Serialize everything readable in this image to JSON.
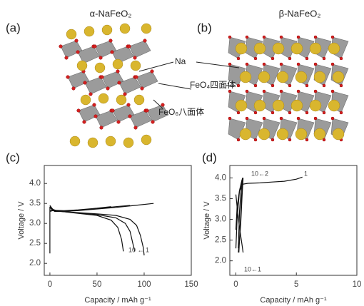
{
  "panels": {
    "a": "(a)",
    "b": "(b)",
    "c": "(c)",
    "d": "(d)"
  },
  "structures": {
    "alpha_title": "α-NaFeO₂",
    "beta_title": "β-NaFeO₂",
    "na_label": "Na",
    "feo4_label": "FeO₄四面体",
    "feo6_label": "FeO₆八面体"
  },
  "chart_data": [
    {
      "type": "line",
      "x_label": "Capacity / mAh g⁻¹",
      "y_label": "Voltage / V",
      "xlim": [
        -6,
        150
      ],
      "xticks": [
        0,
        50,
        100,
        150
      ],
      "ylim": [
        1.7,
        4.45
      ],
      "yticks": [
        {
          "value": 2,
          "label": "2.0"
        },
        2.5,
        {
          "value": 3,
          "label": "3.0"
        },
        3.5,
        {
          "value": 4,
          "label": "4.0"
        }
      ],
      "annotations": [
        "10 ← 1"
      ],
      "series": [
        {
          "color": "#111",
          "x": [
            0,
            0,
            2,
            5,
            15,
            30,
            50,
            70,
            90,
            110
          ],
          "values": [
            2.25,
            3.4,
            3.35,
            3.3,
            3.3,
            3.32,
            3.36,
            3.4,
            3.45,
            3.5
          ]
        },
        {
          "color": "#111",
          "x": [
            0,
            3,
            10,
            30,
            50,
            70,
            85,
            92,
            96,
            99,
            100
          ],
          "values": [
            3.45,
            3.35,
            3.3,
            3.27,
            3.24,
            3.2,
            3.1,
            2.95,
            2.7,
            2.4,
            2.2
          ]
        },
        {
          "color": "#111",
          "x": [
            0,
            3,
            15,
            30,
            50,
            70,
            85
          ],
          "values": [
            3.3,
            3.32,
            3.31,
            3.33,
            3.37,
            3.42,
            3.45
          ]
        },
        {
          "color": "#111",
          "x": [
            0,
            5,
            30,
            50,
            70,
            80,
            85,
            88,
            90
          ],
          "values": [
            3.42,
            3.32,
            3.26,
            3.22,
            3.14,
            3.0,
            2.8,
            2.5,
            2.3
          ]
        },
        {
          "color": "#111",
          "x": [
            0,
            3,
            15,
            30,
            50,
            65
          ],
          "values": [
            3.33,
            3.33,
            3.32,
            3.34,
            3.38,
            3.42
          ]
        },
        {
          "color": "#111",
          "x": [
            0,
            5,
            30,
            50,
            65,
            72,
            76,
            78
          ],
          "values": [
            3.4,
            3.32,
            3.25,
            3.2,
            3.08,
            2.9,
            2.6,
            2.3
          ]
        }
      ]
    },
    {
      "type": "line",
      "x_label": "Capacity / mAh g⁻¹",
      "y_label": "Voltage / V",
      "xlim": [
        -0.5,
        10
      ],
      "xticks": [
        0,
        5,
        10
      ],
      "ylim": [
        1.65,
        4.3
      ],
      "yticks": [
        {
          "value": 2,
          "label": "2.0"
        },
        2.5,
        {
          "value": 3,
          "label": "3.0"
        },
        3.5,
        {
          "value": 4,
          "label": "4.0"
        }
      ],
      "annotations": [
        "10←2",
        "1",
        "10←1"
      ],
      "series": [
        {
          "color": "#111",
          "x": [
            0,
            0.1,
            0.3,
            0.6,
            1,
            2,
            3,
            4,
            5,
            5.5
          ],
          "values": [
            2.75,
            3.3,
            3.7,
            3.85,
            3.87,
            3.88,
            3.9,
            3.92,
            3.97,
            4.02
          ]
        },
        {
          "color": "#111",
          "x": [
            0,
            0.1,
            0.3,
            0.5,
            0.6
          ],
          "values": [
            3.6,
            3.3,
            2.8,
            2.4,
            2.2
          ]
        },
        {
          "color": "#111",
          "x": [
            0,
            0.1,
            0.3,
            0.5,
            0.6
          ],
          "values": [
            2.3,
            3.0,
            3.7,
            3.95,
            4.0
          ]
        },
        {
          "color": "#111",
          "x": [
            0.6,
            0.5,
            0.4,
            0.3,
            0.2
          ],
          "values": [
            4.0,
            3.5,
            2.9,
            2.5,
            2.2
          ]
        },
        {
          "color": "#111",
          "x": [
            0.2,
            0.3,
            0.45,
            0.55
          ],
          "values": [
            2.3,
            3.2,
            3.8,
            4.0
          ]
        },
        {
          "color": "#111",
          "x": [
            0.55,
            0.45,
            0.35,
            0.25
          ],
          "values": [
            4.0,
            3.4,
            2.8,
            2.2
          ]
        }
      ]
    }
  ]
}
